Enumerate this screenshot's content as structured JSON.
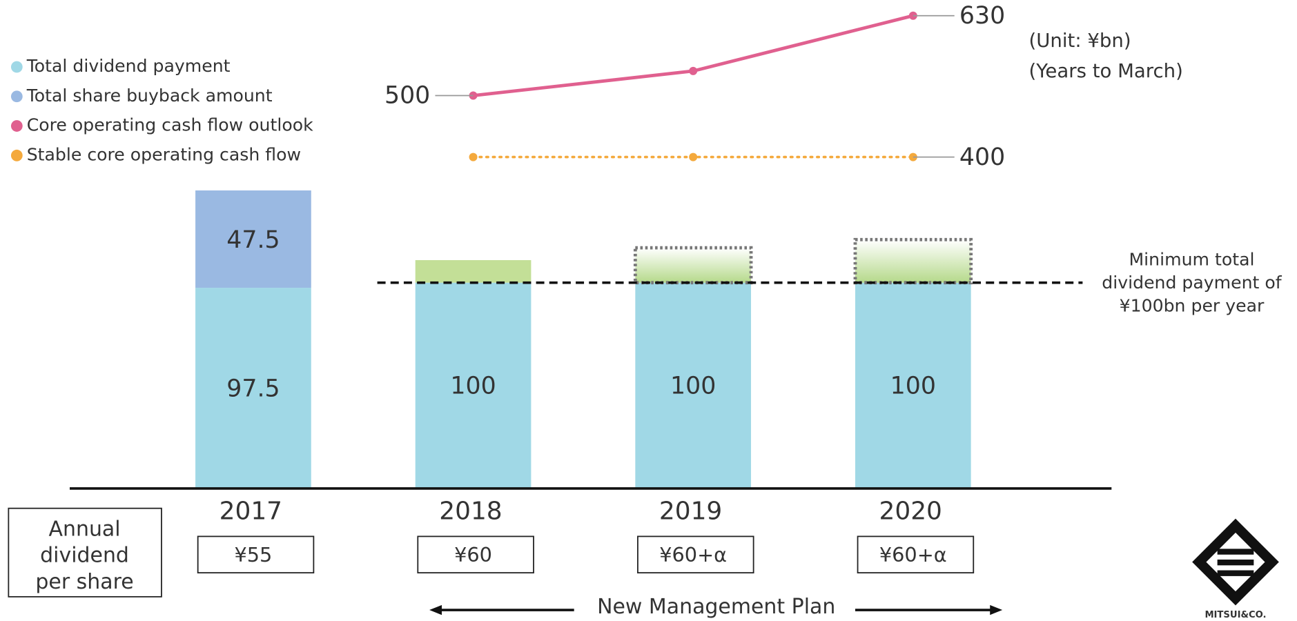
{
  "chart_data": {
    "type": "bar",
    "categories": [
      "2017",
      "2018",
      "2019",
      "2020"
    ],
    "ylim": [
      0,
      150
    ],
    "series": [
      {
        "name": "Total dividend payment",
        "color": "#a0d8e6",
        "values": [
          97.5,
          100,
          100,
          100
        ]
      },
      {
        "name": "Total share buyback amount",
        "color": "#9ab9e2",
        "values": [
          47.5,
          null,
          null,
          null
        ]
      },
      {
        "color": "#c3df97",
        "values": [
          null,
          11,
          17,
          21
        ],
        "dotted_outline": [
          false,
          false,
          true,
          true
        ]
      }
    ],
    "lines": {
      "type": "line",
      "y2lim": [
        400,
        630
      ],
      "series": [
        {
          "name": "Core operating cash flow outlook",
          "color": "#e0608f",
          "style": "solid",
          "values": [
            null,
            500,
            540,
            630
          ],
          "value_labels": [
            null,
            "500",
            null,
            "630"
          ]
        },
        {
          "name": "Stable core operating cash flow",
          "color": "#f4a93c",
          "style": "dotted",
          "values": [
            null,
            400,
            400,
            400
          ],
          "value_labels": [
            null,
            null,
            null,
            "400"
          ]
        }
      ]
    },
    "threshold": {
      "value": 100,
      "label": [
        "Minimum total",
        "dividend payment of",
        "¥100bn per year"
      ]
    },
    "notes": [
      "(Unit: ¥bn)",
      "(Years to March)"
    ],
    "per_share": {
      "label": [
        "Annual",
        "dividend",
        "per share"
      ],
      "values": [
        "¥55",
        "¥60",
        "¥60+α",
        "¥60+α"
      ]
    },
    "plan": "New Management Plan",
    "logo": "MITSUI&CO."
  }
}
